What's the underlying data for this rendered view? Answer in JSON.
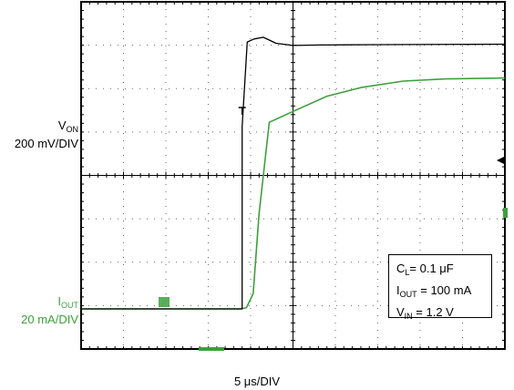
{
  "chart_data": {
    "type": "line",
    "x_scale_label": "5 μs/DIV",
    "x_unit": "μs",
    "x_range": [
      0,
      50
    ],
    "grid": true,
    "series": [
      {
        "name_parts": [
          "V",
          "ON"
        ],
        "scale_label": "200 mV/DIV",
        "color": "#000000",
        "points": [
          [
            0,
            0
          ],
          [
            19.0,
            0
          ],
          [
            19.0,
            4.2
          ],
          [
            19.6,
            6.15
          ],
          [
            20.4,
            6.22
          ],
          [
            21.5,
            6.26
          ],
          [
            23.0,
            6.12
          ],
          [
            25.0,
            6.07
          ],
          [
            28.0,
            6.08
          ],
          [
            35.0,
            6.09
          ],
          [
            50.0,
            6.1
          ]
        ]
      },
      {
        "name_parts": [
          "I",
          "OUT"
        ],
        "scale_label": "20 mA/DIV",
        "color": "#3da03d",
        "points": [
          [
            0,
            0
          ],
          [
            18.9,
            0
          ],
          [
            19.5,
            0.03
          ],
          [
            20.3,
            0.35
          ],
          [
            21.0,
            2.2
          ],
          [
            22.2,
            4.3
          ],
          [
            25.0,
            4.55
          ],
          [
            29.0,
            4.9
          ],
          [
            33.0,
            5.1
          ],
          [
            38.0,
            5.25
          ],
          [
            43.0,
            5.3
          ],
          [
            50.0,
            5.32
          ]
        ]
      }
    ],
    "annotations": [
      {
        "main": "C",
        "sub": "L",
        "rest": "= 0.1 μF"
      },
      {
        "main": "I",
        "sub": "OUT",
        "rest": " = 100 mA"
      },
      {
        "main": "V",
        "sub": "IN",
        "rest": " = 1.2 V"
      }
    ]
  }
}
